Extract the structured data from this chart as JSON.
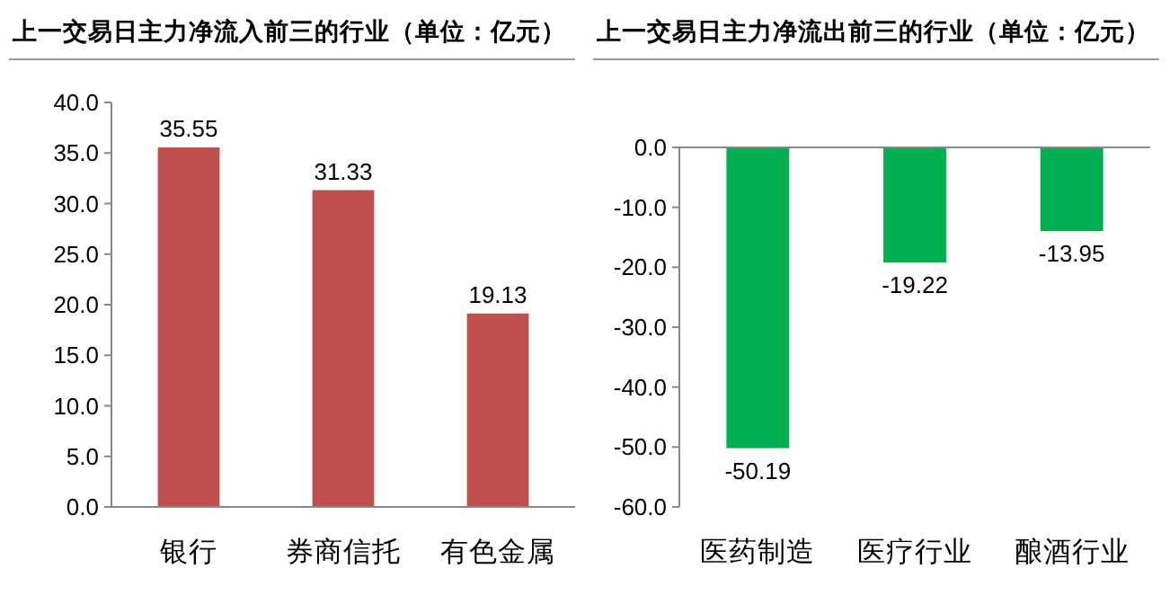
{
  "chart_data": [
    {
      "type": "bar",
      "title": "上一交易日主力净流入前三的行业（单位：亿元）",
      "categories": [
        "银行",
        "券商信托",
        "有色金属"
      ],
      "values": [
        35.55,
        31.33,
        19.13
      ],
      "color": "#c0504d",
      "data_labels": true,
      "ylim": [
        0,
        40
      ],
      "yticks": [
        {
          "value": 0,
          "label": "0.0"
        },
        {
          "value": 5,
          "label": "5.0"
        },
        {
          "value": 10,
          "label": "10.0"
        },
        {
          "value": 15,
          "label": "15.0"
        },
        {
          "value": 20,
          "label": "20.0"
        },
        {
          "value": 25,
          "label": "25.0"
        },
        {
          "value": 30,
          "label": "30.0"
        },
        {
          "value": 35,
          "label": "35.0"
        },
        {
          "value": 40,
          "label": "40.0"
        }
      ]
    },
    {
      "type": "bar",
      "title": "上一交易日主力净流出前三的行业（单位：亿元）",
      "categories": [
        "医药制造",
        "医疗行业",
        "酿酒行业"
      ],
      "values": [
        -50.19,
        -19.22,
        -13.95
      ],
      "color": "#00b050",
      "data_labels": true,
      "ylim": [
        -60,
        0
      ],
      "yticks": [
        {
          "value": 0,
          "label": "0.0"
        },
        {
          "value": -10,
          "label": "-10.0"
        },
        {
          "value": -20,
          "label": "-20.0"
        },
        {
          "value": -30,
          "label": "-30.0"
        },
        {
          "value": -40,
          "label": "-40.0"
        },
        {
          "value": -50,
          "label": "-50.0"
        },
        {
          "value": -60,
          "label": "-60.0"
        }
      ]
    }
  ]
}
